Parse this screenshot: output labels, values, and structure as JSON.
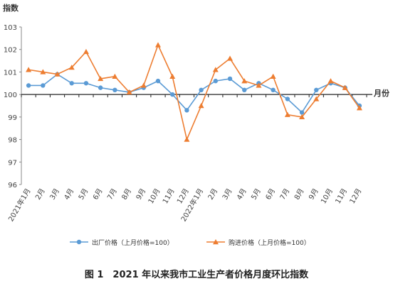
{
  "caption": "图 1　2021 年以来我市工业生产者价格月度环比指数",
  "chart_data": {
    "type": "line",
    "ylabel": "指数",
    "xlabel": "月份",
    "ylim": [
      96,
      103
    ],
    "yticks": [
      96,
      97,
      98,
      99,
      100,
      101,
      102,
      103
    ],
    "baseline": 100,
    "categories": [
      "2021年1月",
      "2月",
      "3月",
      "4月",
      "5月",
      "6月",
      "7月",
      "8月",
      "9月",
      "10月",
      "11月",
      "12月",
      "2022年1月",
      "2月",
      "3月",
      "4月",
      "5月",
      "6月",
      "7月",
      "8月",
      "9月",
      "10月",
      "11月",
      "12月"
    ],
    "series": [
      {
        "name": "出厂价格（上月价格=100）",
        "color": "#5b9bd5",
        "marker": "circle",
        "values": [
          100.4,
          100.4,
          100.9,
          100.5,
          100.5,
          100.3,
          100.2,
          100.1,
          100.3,
          100.6,
          100.0,
          99.3,
          100.2,
          100.6,
          100.7,
          100.2,
          100.5,
          100.2,
          99.8,
          99.2,
          100.2,
          100.5,
          100.3,
          99.5
        ]
      },
      {
        "name": "购进价格（上月价格=100）",
        "color": "#ed7d31",
        "marker": "triangle",
        "values": [
          101.1,
          101.0,
          100.9,
          101.2,
          101.9,
          100.7,
          100.8,
          100.1,
          100.4,
          102.2,
          100.8,
          98.0,
          99.5,
          101.1,
          101.6,
          100.6,
          100.4,
          100.8,
          99.1,
          99.0,
          99.8,
          100.6,
          100.3,
          99.4
        ]
      }
    ]
  }
}
